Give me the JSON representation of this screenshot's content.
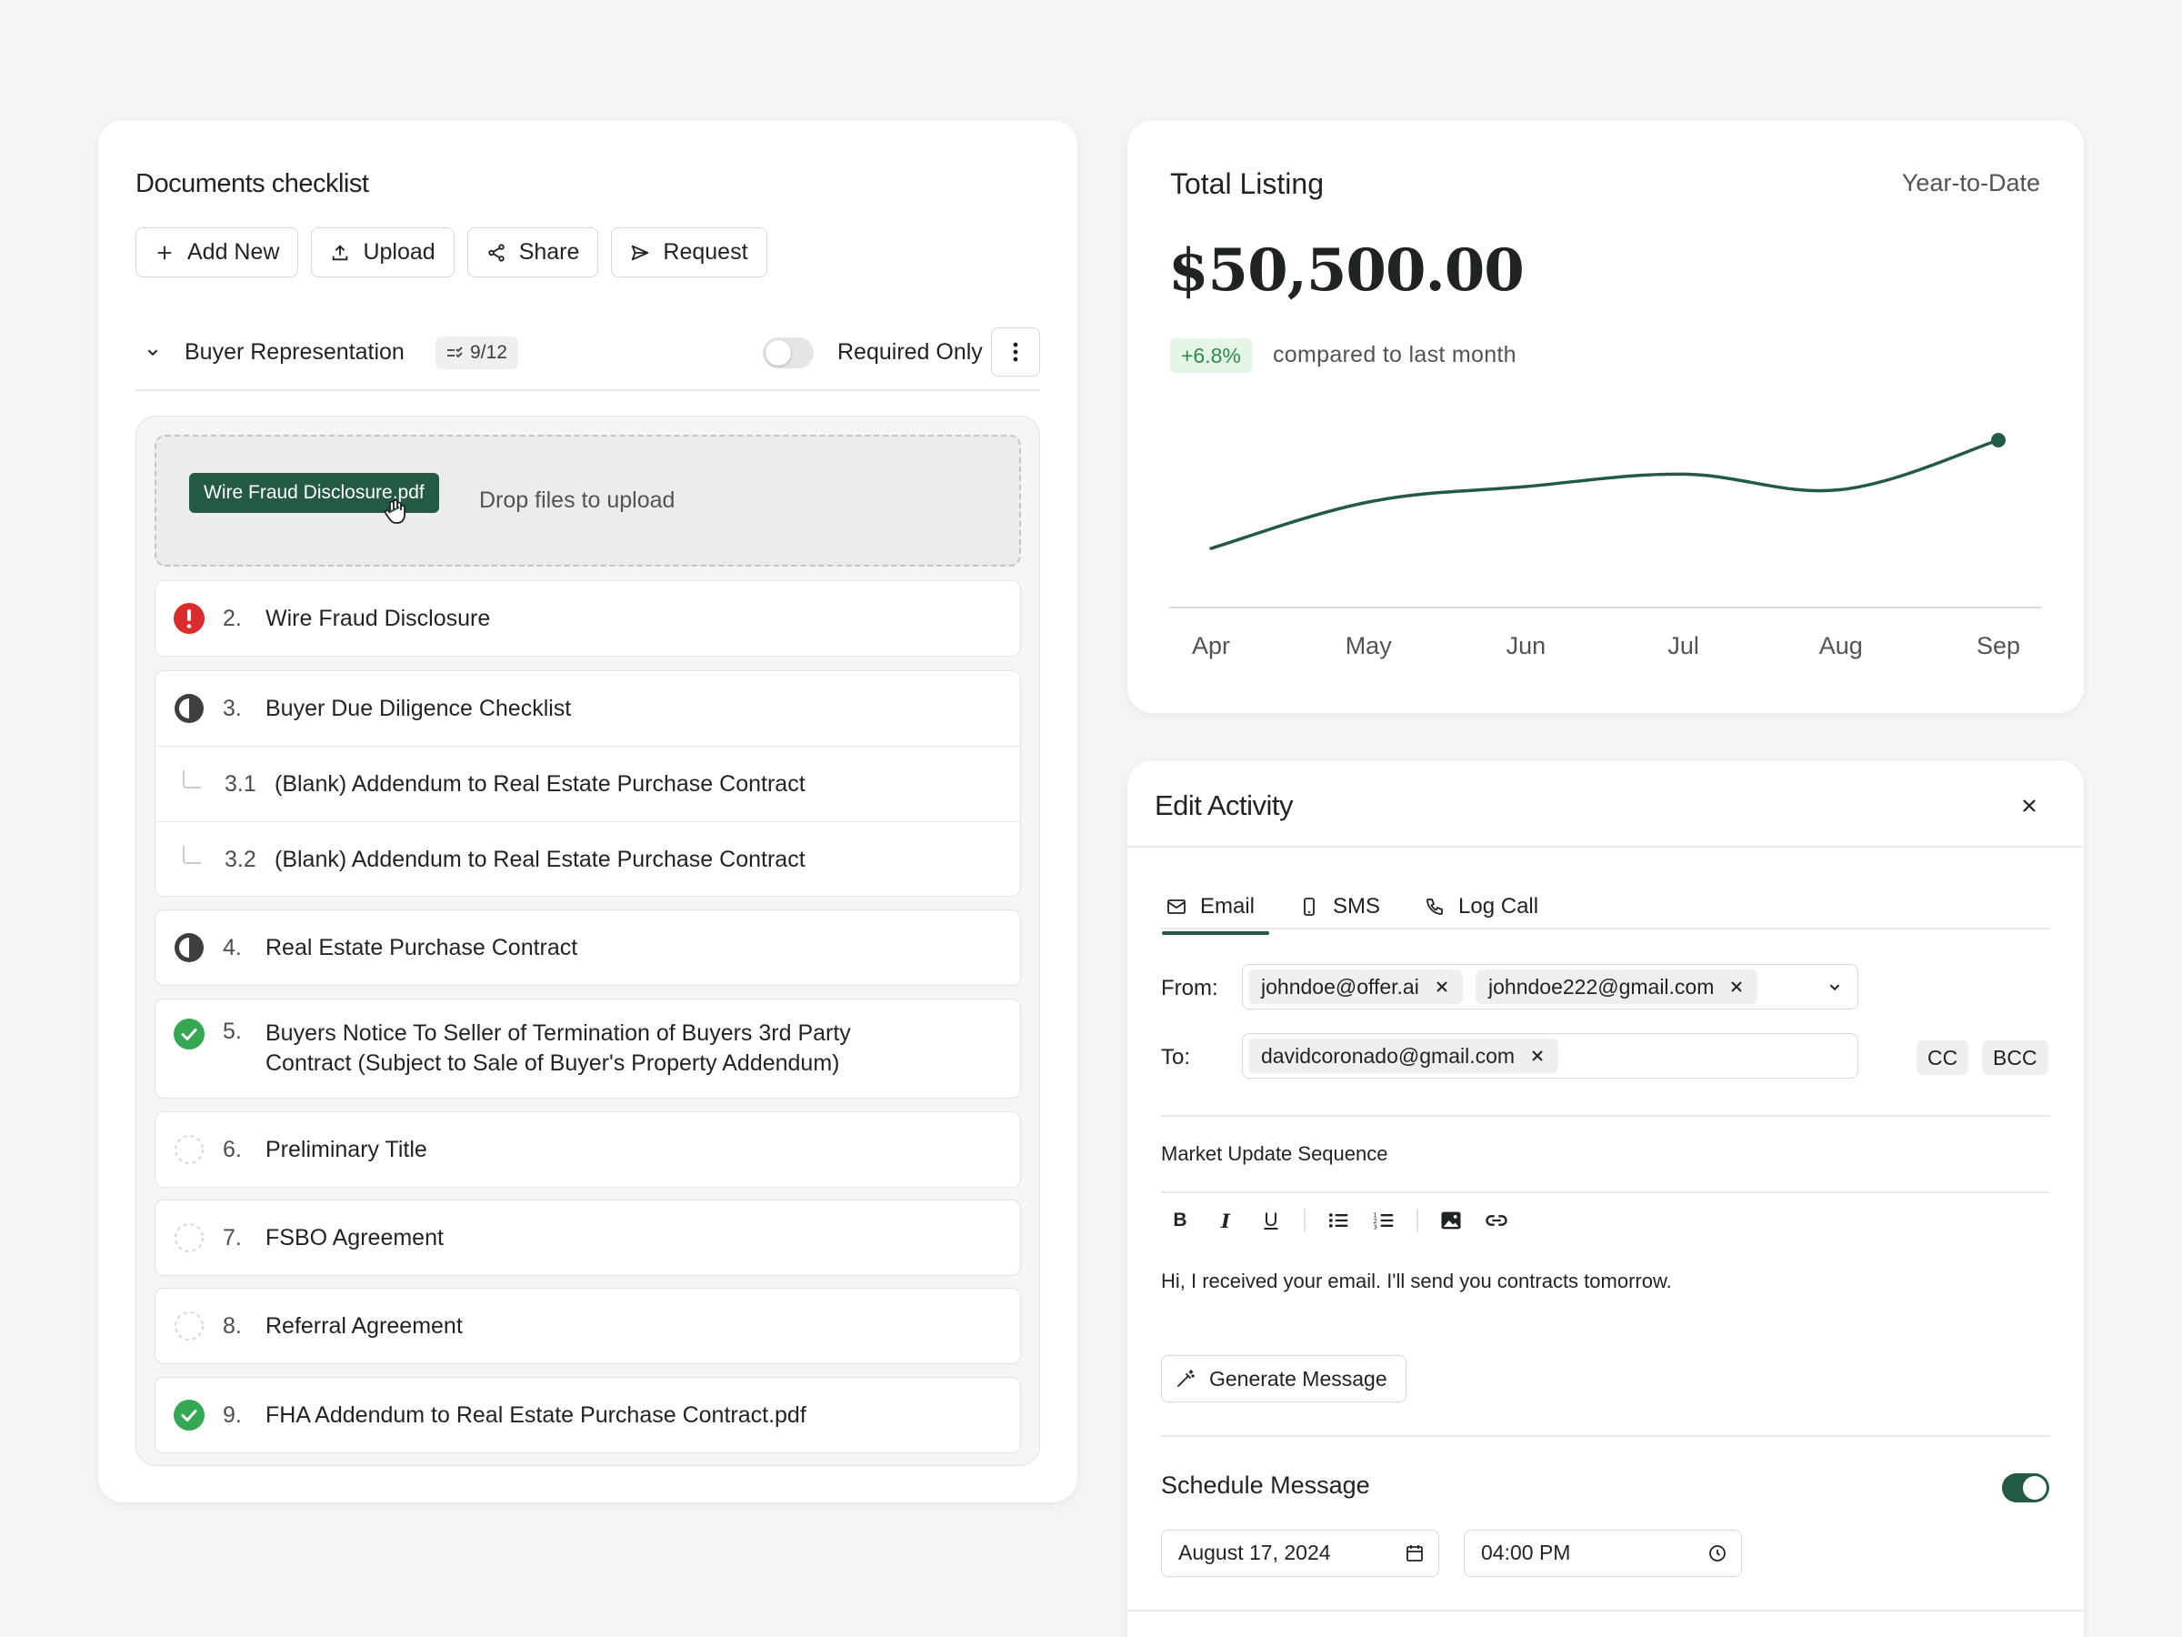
{
  "docs": {
    "title": "Documents checklist",
    "toolbar": {
      "add": "Add New",
      "upload": "Upload",
      "share": "Share",
      "request": "Request"
    },
    "section": {
      "label": "Buyer Representation",
      "count": "9/12",
      "required_label": "Required Only"
    },
    "dropzone": {
      "file_chip": "Wire Fraud Disclosure.pdf",
      "text": "Drop files to upload"
    },
    "items": [
      {
        "num": "2.",
        "label": "Wire Fraud Disclosure",
        "status": "error"
      },
      {
        "num": "3.",
        "label": "Buyer Due Diligence Checklist",
        "status": "partial"
      },
      {
        "num": "3.1",
        "label": "(Blank) Addendum to Real Estate Purchase Contract",
        "status": "sub"
      },
      {
        "num": "3.2",
        "label": "(Blank) Addendum to Real Estate Purchase Contract",
        "status": "sub"
      },
      {
        "num": "4.",
        "label": "Real Estate Purchase Contract",
        "status": "partial"
      },
      {
        "num": "5.",
        "label": "Buyers Notice To Seller of Termination of Buyers 3rd Party",
        "label2": "Contract (Subject to Sale of Buyer's Property Addendum)",
        "status": "done"
      },
      {
        "num": "6.",
        "label": "Preliminary Title",
        "status": "empty"
      },
      {
        "num": "7.",
        "label": "FSBO Agreement",
        "status": "empty"
      },
      {
        "num": "8.",
        "label": "Referral Agreement",
        "status": "empty"
      },
      {
        "num": "9.",
        "label": "FHA Addendum to Real Estate Purchase Contract.pdf",
        "status": "done"
      }
    ]
  },
  "listing": {
    "title": "Total Listing",
    "period": "Year-to-Date",
    "amount": "$50,500.00",
    "change": "+6.8%",
    "compare": "compared to last month"
  },
  "chart_data": {
    "type": "line",
    "categories": [
      "Apr",
      "May",
      "Jun",
      "Jul",
      "Aug",
      "Sep"
    ],
    "series": [
      {
        "values": [
          20,
          50,
          60,
          68,
          58,
          90
        ]
      }
    ],
    "ylim": [
      0,
      100
    ],
    "grid": false,
    "color": "#245a43"
  },
  "edit": {
    "title": "Edit Activity",
    "tabs": [
      "Email",
      "SMS",
      "Log Call"
    ],
    "from_label": "From:",
    "from": [
      "johndoe@offer.ai",
      "johndoe222@gmail.com"
    ],
    "to_label": "To:",
    "to": [
      "davidcoronado@gmail.com"
    ],
    "cc": "CC",
    "bcc": "BCC",
    "subject": "Market Update Sequence",
    "body": "Hi, I received your email. I'll send you contracts tomorrow.",
    "generate": "Generate Message",
    "schedule": "Schedule Message",
    "date": "August 17, 2024",
    "time": "04:00 PM"
  },
  "colors": {
    "accent": "#245a43",
    "error": "#d92d2d",
    "success": "#34a853",
    "positive_text": "#2d8a49"
  }
}
